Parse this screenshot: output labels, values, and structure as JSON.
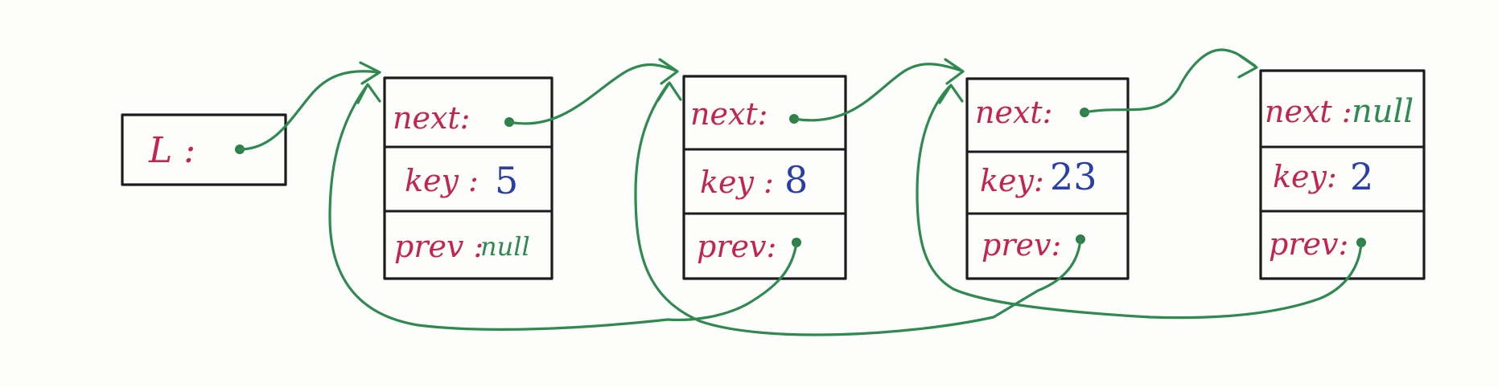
{
  "head": {
    "label": "L :"
  },
  "nodes": [
    {
      "next_label": "next:",
      "next_value": "",
      "key_label": "key :",
      "key_value": "5",
      "prev_label": "prev :",
      "prev_value": "null"
    },
    {
      "next_label": "next:",
      "next_value": "",
      "key_label": "key :",
      "key_value": "8",
      "prev_label": "prev:",
      "prev_value": ""
    },
    {
      "next_label": "next:",
      "next_value": "",
      "key_label": "key:",
      "key_value": "23",
      "prev_label": "prev:",
      "prev_value": ""
    },
    {
      "next_label": "next :",
      "next_value": "null",
      "key_label": "key:",
      "key_value": "2",
      "prev_label": "prev:",
      "prev_value": ""
    }
  ],
  "colors": {
    "label": "#c4244e",
    "key_value": "#2a3ea8",
    "pointer": "#2e8a4f",
    "box": "#1c1c1c"
  }
}
